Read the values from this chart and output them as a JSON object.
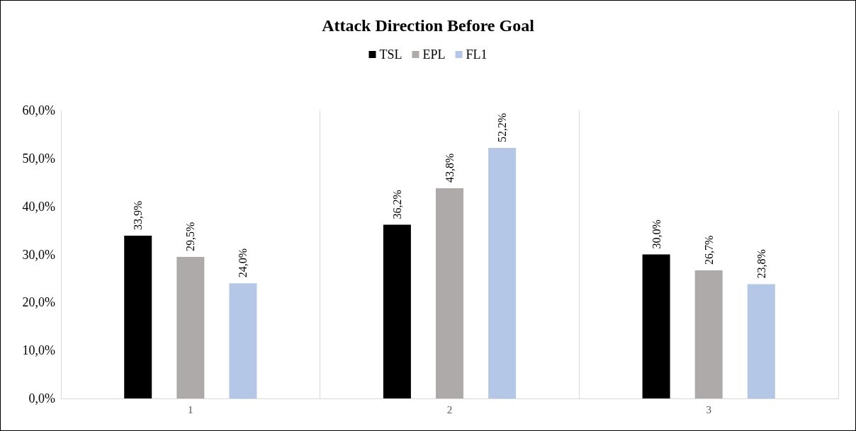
{
  "chart_data": {
    "type": "bar",
    "title": "Attack Direction Before Goal",
    "categories": [
      "1",
      "2",
      "3"
    ],
    "series": [
      {
        "name": "TSL",
        "color": "#000000",
        "values": [
          33.9,
          36.2,
          30.0
        ],
        "value_labels": [
          "33,9%",
          "36,2%",
          "30,0%"
        ]
      },
      {
        "name": "EPL",
        "color": "#aeaaaa",
        "values": [
          29.5,
          43.8,
          26.7
        ],
        "value_labels": [
          "29,5%",
          "43,8%",
          "26,7%"
        ]
      },
      {
        "name": "FL1",
        "color": "#b4c7e7",
        "values": [
          24.0,
          52.2,
          23.8
        ],
        "value_labels": [
          "24,0%",
          "52,2%",
          "23,8%"
        ]
      }
    ],
    "ylim": [
      0,
      60
    ],
    "yticks": [
      {
        "value": 0,
        "label": "0,0%"
      },
      {
        "value": 10,
        "label": "10,0%"
      },
      {
        "value": 20,
        "label": "20,0%"
      },
      {
        "value": 30,
        "label": "30,0%"
      },
      {
        "value": 40,
        "label": "40,0%"
      },
      {
        "value": 50,
        "label": "50,0%"
      },
      {
        "value": 60,
        "label": "60,0%"
      }
    ],
    "grid": "x",
    "legend": "top"
  }
}
